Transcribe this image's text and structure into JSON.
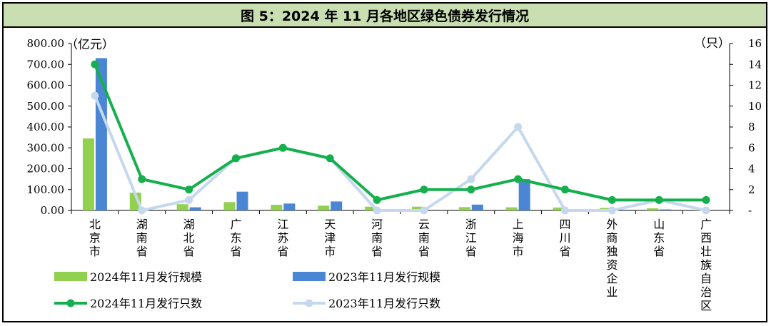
{
  "chart_data": {
    "type": "bar",
    "title": "图 5：2024 年 11 月各地区绿色债券发行情况",
    "left_unit": "（亿元）",
    "right_unit": "（只）",
    "categories": [
      "北京市",
      "湖南省",
      "湖北省",
      "广东省",
      "江苏省",
      "天津市",
      "河南省",
      "云南省",
      "浙江省",
      "上海市",
      "四川省",
      "外商独资企业",
      "山东省",
      "广西壮族自治区"
    ],
    "left_axis": {
      "min": 0,
      "max": 800,
      "ticks": [
        "0.00",
        "100.00",
        "200.00",
        "300.00",
        "400.00",
        "500.00",
        "600.00",
        "700.00",
        "800.00"
      ]
    },
    "right_axis": {
      "min": 0,
      "max": 16,
      "ticks": [
        "-",
        "2",
        "4",
        "6",
        "8",
        "10",
        "12",
        "14",
        "16"
      ]
    },
    "bar_series": [
      {
        "name": "2024年11月发行规模",
        "color": "#92d050",
        "values": [
          345,
          85,
          30,
          40,
          27,
          23,
          18,
          18,
          16,
          15,
          14,
          12,
          10,
          3
        ]
      },
      {
        "name": "2023年11月发行规模",
        "color": "#4a86d4",
        "values": [
          730,
          0,
          15,
          90,
          33,
          43,
          0,
          0,
          28,
          150,
          0,
          0,
          5,
          0
        ]
      }
    ],
    "line_series": [
      {
        "name": "2024年11月发行只数",
        "color": "#15b04d",
        "values": [
          14,
          3,
          2,
          5,
          6,
          5,
          1,
          2,
          2,
          3,
          2,
          1,
          1,
          1
        ]
      },
      {
        "name": "2023年11月发行只数",
        "color": "#c5d8ee",
        "values": [
          11,
          0,
          1,
          5,
          6,
          5,
          0,
          0,
          3,
          8,
          0,
          0,
          1,
          0
        ]
      }
    ]
  }
}
